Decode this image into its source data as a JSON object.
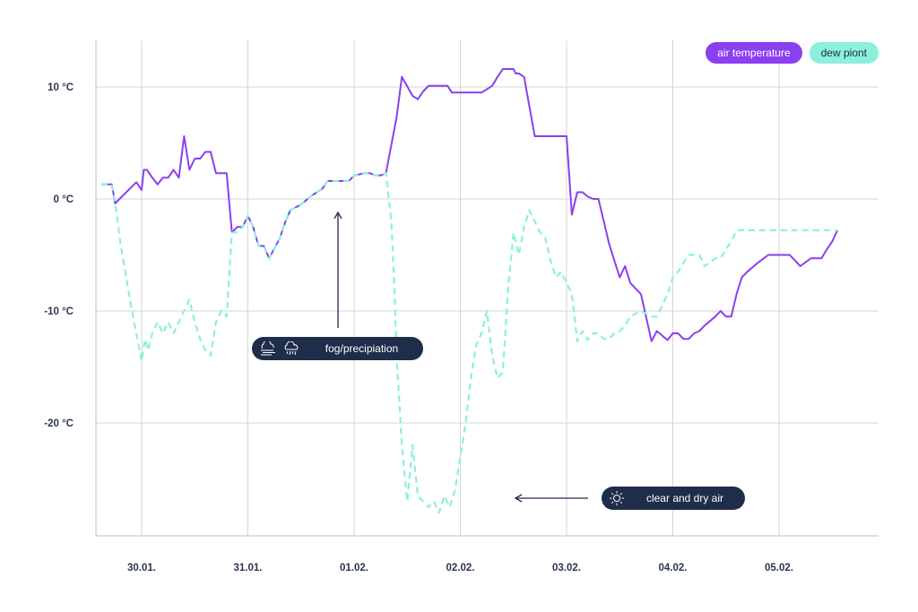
{
  "legend": {
    "air_label": "air temperature",
    "dew_label": "dew piont"
  },
  "annotations": {
    "fog_label": "fog/precipiation",
    "clear_label": "clear and dry air"
  },
  "colors": {
    "air": "#8a3ff0",
    "dew": "#8cf0dc",
    "annotation_bg": "#1e2d4a",
    "grid": "#d5d5d5",
    "axis_text": "#2b3550"
  },
  "chart_data": {
    "type": "line",
    "xlabel": "",
    "ylabel": "",
    "x_unit": "days",
    "xlim": [
      29.6,
      36.8
    ],
    "ylim": [
      -30,
      14
    ],
    "yticks": [
      10,
      0,
      -10,
      -20
    ],
    "ytick_labels": [
      "10 °C",
      "0 °C",
      "-10 °C",
      "-20 °C"
    ],
    "xticks": [
      30,
      31,
      32,
      33,
      34,
      35,
      36
    ],
    "xtick_labels": [
      "30.01.",
      "31.01.",
      "01.02.",
      "02.02.",
      "03.02.",
      "04.02.",
      "05.02."
    ],
    "grid": true,
    "legend_position": "top-right",
    "series": [
      {
        "name": "air temperature",
        "x": [
          29.62,
          29.72,
          29.75,
          29.95,
          30.0,
          30.02,
          30.05,
          30.1,
          30.15,
          30.2,
          30.25,
          30.3,
          30.35,
          30.4,
          30.45,
          30.5,
          30.55,
          30.6,
          30.65,
          30.7,
          30.75,
          30.8,
          30.85,
          30.9,
          30.95,
          31.0,
          31.05,
          31.1,
          31.15,
          31.2,
          31.3,
          31.35,
          31.4,
          31.5,
          31.6,
          31.7,
          31.75,
          31.85,
          31.95,
          32.0,
          32.1,
          32.15,
          32.2,
          32.25,
          32.3,
          32.4,
          32.45,
          32.55,
          32.6,
          32.65,
          32.7,
          32.75,
          32.8,
          32.82,
          32.85,
          32.88,
          32.92,
          32.97,
          33.0,
          33.1,
          33.15,
          33.2,
          33.3,
          33.35,
          33.4,
          33.45,
          33.5,
          33.52,
          33.55,
          33.6,
          33.7,
          34.0,
          34.05,
          34.1,
          34.15,
          34.2,
          34.25,
          34.3,
          34.35,
          34.4,
          34.45,
          34.5,
          34.55,
          34.6,
          34.7,
          34.8,
          34.85,
          34.95,
          35.0,
          35.05,
          35.1,
          35.15,
          35.2,
          35.25,
          35.3,
          35.4,
          35.45,
          35.5,
          35.55,
          35.6,
          35.65,
          35.7,
          35.8,
          35.9,
          36.0,
          36.1,
          36.2,
          36.3,
          36.4,
          36.45,
          36.5,
          36.55
        ],
        "y": [
          1.3,
          1.3,
          -0.4,
          1.5,
          0.8,
          2.6,
          2.6,
          1.9,
          1.3,
          1.9,
          1.9,
          2.6,
          1.9,
          5.6,
          2.6,
          3.6,
          3.6,
          4.2,
          4.2,
          2.3,
          2.3,
          2.3,
          -3.0,
          -2.5,
          -2.5,
          -1.5,
          -2.5,
          -4.2,
          -4.2,
          -5.3,
          -3.5,
          -2.1,
          -1.0,
          -0.5,
          0.3,
          0.9,
          1.6,
          1.6,
          1.6,
          2.1,
          2.3,
          2.3,
          2.1,
          2.1,
          2.3,
          7.3,
          10.9,
          9.2,
          8.9,
          9.6,
          10.1,
          10.1,
          10.1,
          10.1,
          10.1,
          10.1,
          9.5,
          9.5,
          9.5,
          9.5,
          9.5,
          9.5,
          10.1,
          10.9,
          11.6,
          11.6,
          11.6,
          11.2,
          11.2,
          10.9,
          5.6,
          5.6,
          -1.4,
          0.6,
          0.6,
          0.2,
          0.0,
          0.0,
          -2.0,
          -4.0,
          -5.5,
          -7.0,
          -6.0,
          -7.5,
          -8.5,
          -12.7,
          -11.8,
          -12.6,
          -12.0,
          -12.0,
          -12.5,
          -12.5,
          -12.0,
          -11.8,
          -11.3,
          -10.5,
          -10.0,
          -10.5,
          -10.5,
          -8.5,
          -7.0,
          -6.5,
          -5.7,
          -5.0,
          -5.0,
          -5.0,
          -6.0,
          -5.3,
          -5.3,
          -4.5,
          -3.8,
          -2.8
        ]
      },
      {
        "name": "dew piont",
        "x": [
          29.62,
          29.72,
          29.75,
          29.8,
          29.9,
          29.95,
          30.0,
          30.03,
          30.06,
          30.1,
          30.15,
          30.2,
          30.25,
          30.3,
          30.35,
          30.4,
          30.45,
          30.5,
          30.55,
          30.6,
          30.65,
          30.7,
          30.75,
          30.8,
          30.85,
          30.9,
          30.95,
          31.0,
          31.05,
          31.1,
          31.15,
          31.2,
          31.3,
          31.35,
          31.4,
          31.5,
          31.6,
          31.7,
          31.75,
          31.85,
          31.95,
          32.0,
          32.1,
          32.15,
          32.2,
          32.25,
          32.3,
          32.35,
          32.38,
          32.4,
          32.45,
          32.5,
          32.55,
          32.6,
          32.65,
          32.7,
          32.75,
          32.8,
          32.85,
          32.9,
          32.95,
          33.0,
          33.05,
          33.1,
          33.15,
          33.2,
          33.25,
          33.3,
          33.35,
          33.4,
          33.45,
          33.5,
          33.55,
          33.6,
          33.65,
          33.7,
          33.75,
          33.8,
          33.85,
          33.9,
          33.95,
          34.0,
          34.05,
          34.1,
          34.15,
          34.2,
          34.25,
          34.3,
          34.35,
          34.4,
          34.45,
          34.5,
          34.55,
          34.6,
          34.7,
          34.8,
          34.85,
          34.95,
          35.0,
          35.05,
          35.1,
          35.15,
          35.2,
          35.25,
          35.3,
          35.4,
          35.45,
          35.5,
          35.55,
          35.6,
          35.65,
          35.7,
          35.8,
          35.9,
          36.0,
          36.1,
          36.2,
          36.3,
          36.4,
          36.45,
          36.5,
          36.55
        ],
        "y": [
          1.3,
          1.3,
          -0.2,
          -4.0,
          -9.5,
          -12.0,
          -14.5,
          -12.5,
          -13.5,
          -12.0,
          -11.0,
          -12.0,
          -11.0,
          -12.0,
          -11.0,
          -10.0,
          -9.0,
          -11.0,
          -12.5,
          -13.5,
          -14.0,
          -11.0,
          -10.0,
          -10.5,
          -3.0,
          -3.0,
          -2.5,
          -1.5,
          -2.5,
          -4.2,
          -4.2,
          -5.3,
          -3.5,
          -2.1,
          -1.0,
          -0.5,
          0.3,
          0.9,
          1.6,
          1.6,
          1.6,
          2.1,
          2.3,
          2.3,
          2.1,
          2.1,
          2.3,
          -2.0,
          -8.0,
          -14.0,
          -22.0,
          -27.0,
          -22.0,
          -26.5,
          -27.0,
          -27.5,
          -27.0,
          -28.0,
          -26.5,
          -27.5,
          -26.0,
          -23.0,
          -20.0,
          -16.0,
          -13.0,
          -12.0,
          -10.0,
          -14.0,
          -16.0,
          -15.5,
          -8.0,
          -3.0,
          -5.0,
          -2.5,
          -1.0,
          -2.0,
          -3.0,
          -3.5,
          -5.5,
          -7.0,
          -6.5,
          -7.5,
          -8.5,
          -12.7,
          -11.8,
          -12.6,
          -12.0,
          -12.0,
          -12.5,
          -12.5,
          -12.0,
          -11.8,
          -11.3,
          -10.5,
          -10.0,
          -10.5,
          -10.5,
          -8.5,
          -7.0,
          -6.5,
          -5.7,
          -5.0,
          -5.0,
          -5.0,
          -6.0,
          -5.3,
          -5.3,
          -4.5,
          -3.8,
          -2.8,
          -2.8,
          -2.8,
          -2.8,
          -2.8,
          -2.8,
          -2.8,
          -2.8,
          -2.8,
          -2.8,
          -2.8,
          -2.8,
          -2.8
        ]
      }
    ]
  }
}
